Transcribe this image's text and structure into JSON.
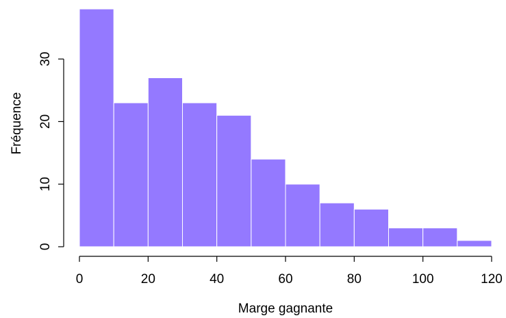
{
  "chart_data": {
    "type": "bar",
    "title": "",
    "xlabel": "Marge gagnante",
    "ylabel": "Fréquence",
    "bins": [
      {
        "from": 0,
        "to": 10,
        "count": 38
      },
      {
        "from": 10,
        "to": 20,
        "count": 23
      },
      {
        "from": 20,
        "to": 30,
        "count": 27
      },
      {
        "from": 30,
        "to": 40,
        "count": 23
      },
      {
        "from": 40,
        "to": 50,
        "count": 21
      },
      {
        "from": 50,
        "to": 60,
        "count": 14
      },
      {
        "from": 60,
        "to": 70,
        "count": 10
      },
      {
        "from": 70,
        "to": 80,
        "count": 7
      },
      {
        "from": 80,
        "to": 90,
        "count": 6
      },
      {
        "from": 90,
        "to": 100,
        "count": 3
      },
      {
        "from": 100,
        "to": 110,
        "count": 3
      },
      {
        "from": 110,
        "to": 120,
        "count": 1
      }
    ],
    "xlim": [
      0,
      120
    ],
    "ylim": [
      0,
      38
    ],
    "x_ticks": [
      "0",
      "20",
      "40",
      "60",
      "80",
      "100",
      "120"
    ],
    "y_ticks": [
      "0",
      "10",
      "20",
      "30"
    ],
    "grid": false,
    "bar_color": "#9479FF"
  }
}
